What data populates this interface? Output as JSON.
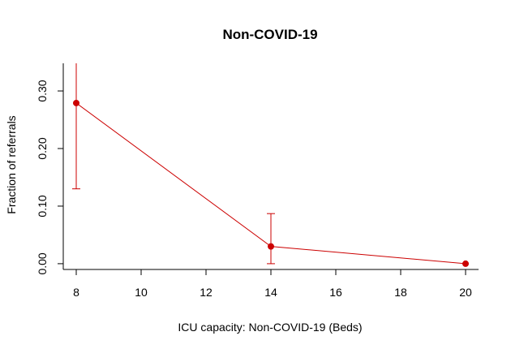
{
  "chart_data": {
    "type": "line",
    "title": "Non-COVID-19",
    "xlabel": "ICU capacity: Non-COVID-19 (Beds)",
    "ylabel": "Fraction of referrals",
    "xlim": [
      7.6,
      20.4
    ],
    "ylim": [
      -0.01,
      0.348
    ],
    "x_ticks": [
      8,
      10,
      12,
      14,
      16,
      18,
      20
    ],
    "y_ticks": [
      0.0,
      0.1,
      0.2,
      0.3
    ],
    "x_tick_labels": [
      "8",
      "10",
      "12",
      "14",
      "16",
      "18",
      "20"
    ],
    "y_tick_labels": [
      "0.00",
      "0.10",
      "0.20",
      "0.30"
    ],
    "grid": false,
    "series": [
      {
        "color": "#cc0000",
        "x": [
          8,
          14,
          20
        ],
        "y": [
          0.279,
          0.03,
          0.0
        ],
        "err_lower": [
          0.13,
          0.0,
          0.0
        ],
        "err_upper": [
          0.37,
          0.087,
          0.0
        ]
      }
    ]
  }
}
